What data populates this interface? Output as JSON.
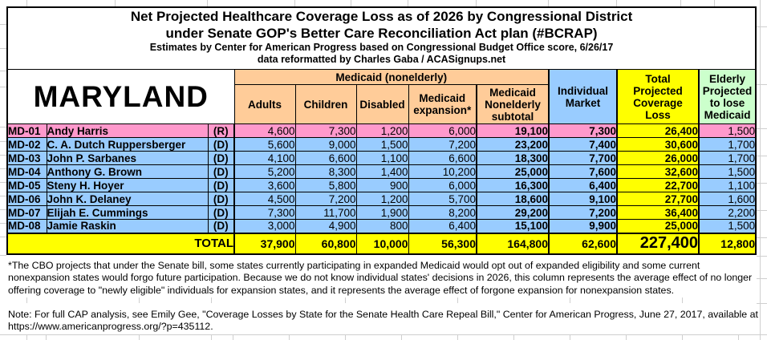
{
  "title": {
    "line1": "Net Projected Healthcare Coverage Loss as of 2026 by Congressional District",
    "line2": "under Senate GOP's Better Care Reconciliation Act plan (#BCRAP)",
    "line3": "Estimates by Center for American Progress based on Congressional Budget Office score, 6/26/17",
    "line4": "data reformatted by Charles Gaba / ACASignups.net"
  },
  "state": "MARYLAND",
  "header": {
    "medicaid_group": "Medicaid (nonelderly)",
    "adults": "Adults",
    "children": "Children",
    "disabled": "Disabled",
    "expansion": "Medicaid\nexpansion*",
    "subtotal": "Medicaid\nNonelderly\nsubtotal",
    "individual_market": "Individual\nMarket",
    "total_loss": "Total\nProjected\nCoverage\nLoss",
    "elderly": "Elderly\nProjected\nto lose\nMedicaid"
  },
  "rows": [
    {
      "district": "MD-01",
      "name": "Andy Harris",
      "party": "(R)",
      "values": [
        "4,600",
        "7,300",
        "1,200",
        "6,000",
        "19,100",
        "7,300",
        "26,400",
        "1,500"
      ]
    },
    {
      "district": "MD-02",
      "name": "C. A. Dutch Ruppersberger",
      "party": "(D)",
      "values": [
        "5,600",
        "9,000",
        "1,500",
        "7,200",
        "23,200",
        "7,400",
        "30,600",
        "1,700"
      ]
    },
    {
      "district": "MD-03",
      "name": "John P. Sarbanes",
      "party": "(D)",
      "values": [
        "4,100",
        "6,600",
        "1,100",
        "6,600",
        "18,300",
        "7,700",
        "26,000",
        "1,700"
      ]
    },
    {
      "district": "MD-04",
      "name": "Anthony G. Brown",
      "party": "(D)",
      "values": [
        "5,200",
        "8,300",
        "1,400",
        "10,200",
        "25,000",
        "7,600",
        "32,600",
        "1,500"
      ]
    },
    {
      "district": "MD-05",
      "name": "Steny H. Hoyer",
      "party": "(D)",
      "values": [
        "3,600",
        "5,800",
        "900",
        "6,000",
        "16,300",
        "6,400",
        "22,700",
        "1,100"
      ]
    },
    {
      "district": "MD-06",
      "name": "John K. Delaney",
      "party": "(D)",
      "values": [
        "4,500",
        "7,200",
        "1,200",
        "5,700",
        "18,600",
        "9,100",
        "27,700",
        "1,600"
      ]
    },
    {
      "district": "MD-07",
      "name": "Elijah E. Cummings",
      "party": "(D)",
      "values": [
        "7,300",
        "11,700",
        "1,900",
        "8,200",
        "29,200",
        "7,200",
        "36,400",
        "2,200"
      ]
    },
    {
      "district": "MD-08",
      "name": "Jamie Raskin",
      "party": "(D)",
      "values": [
        "3,000",
        "4,900",
        "800",
        "6,400",
        "15,100",
        "9,900",
        "25,000",
        "1,500"
      ]
    }
  ],
  "total": {
    "label": "TOTAL",
    "values": [
      "37,900",
      "60,800",
      "10,000",
      "56,300",
      "164,800",
      "62,600",
      "227,400",
      "12,800"
    ]
  },
  "footnote": "*The CBO projects that under the Senate bill, some states currently participating in expanded Medicaid would opt out of expanded eligibility and some current nonexpansion states would forgo future participation. Because we do not know individual states' decisions in 2026, this column represents the average effect of no longer offering coverage to \"newly eligible\" individuals for expansion states, and it represents the average effect of forgone expansion for nonexpansion states.",
  "note": "Note: For full CAP analysis, see Emily Gee, \"Coverage Losses by State for the Senate Health Care Repeal Bill,\" Center for American Progress, June 27, 2017, available at https://www.americanprogress.org/?p=435112.",
  "colors": {
    "republican_row": "#FF99CC",
    "democrat_row": "#99CCFF",
    "medicaid_header": "#FFCC99",
    "individual_market_header": "#99CCFF",
    "total_loss_column": "#FFFF00",
    "elderly_header": "#CCFFCC"
  },
  "chart_data": {
    "type": "table",
    "title": "Net Projected Healthcare Coverage Loss as of 2026 by Congressional District under Senate GOP's Better Care Reconciliation Act plan (#BCRAP)",
    "subtitle": "Estimates by Center for American Progress based on Congressional Budget Office score, 6/26/17; data reformatted by Charles Gaba / ACASignups.net",
    "state": "Maryland",
    "columns": [
      "District",
      "Representative",
      "Party",
      "Medicaid (nonelderly) Adults",
      "Medicaid (nonelderly) Children",
      "Medicaid (nonelderly) Disabled",
      "Medicaid expansion*",
      "Medicaid Nonelderly subtotal",
      "Individual Market",
      "Total Projected Coverage Loss",
      "Elderly Projected to lose Medicaid"
    ],
    "rows": [
      [
        "MD-01",
        "Andy Harris",
        "R",
        4600,
        7300,
        1200,
        6000,
        19100,
        7300,
        26400,
        1500
      ],
      [
        "MD-02",
        "C. A. Dutch Ruppersberger",
        "D",
        5600,
        9000,
        1500,
        7200,
        23200,
        7400,
        30600,
        1700
      ],
      [
        "MD-03",
        "John P. Sarbanes",
        "D",
        4100,
        6600,
        1100,
        6600,
        18300,
        7700,
        26000,
        1700
      ],
      [
        "MD-04",
        "Anthony G. Brown",
        "D",
        5200,
        8300,
        1400,
        10200,
        25000,
        7600,
        32600,
        1500
      ],
      [
        "MD-05",
        "Steny H. Hoyer",
        "D",
        3600,
        5800,
        900,
        6000,
        16300,
        6400,
        22700,
        1100
      ],
      [
        "MD-06",
        "John K. Delaney",
        "D",
        4500,
        7200,
        1200,
        5700,
        18600,
        9100,
        27700,
        1600
      ],
      [
        "MD-07",
        "Elijah E. Cummings",
        "D",
        7300,
        11700,
        1900,
        8200,
        29200,
        7200,
        36400,
        2200
      ],
      [
        "MD-08",
        "Jamie Raskin",
        "D",
        3000,
        4900,
        800,
        6400,
        15100,
        9900,
        25000,
        1500
      ]
    ],
    "total_row": [
      "TOTAL",
      "",
      "",
      37900,
      60800,
      10000,
      56300,
      164800,
      62600,
      227400,
      12800
    ]
  }
}
